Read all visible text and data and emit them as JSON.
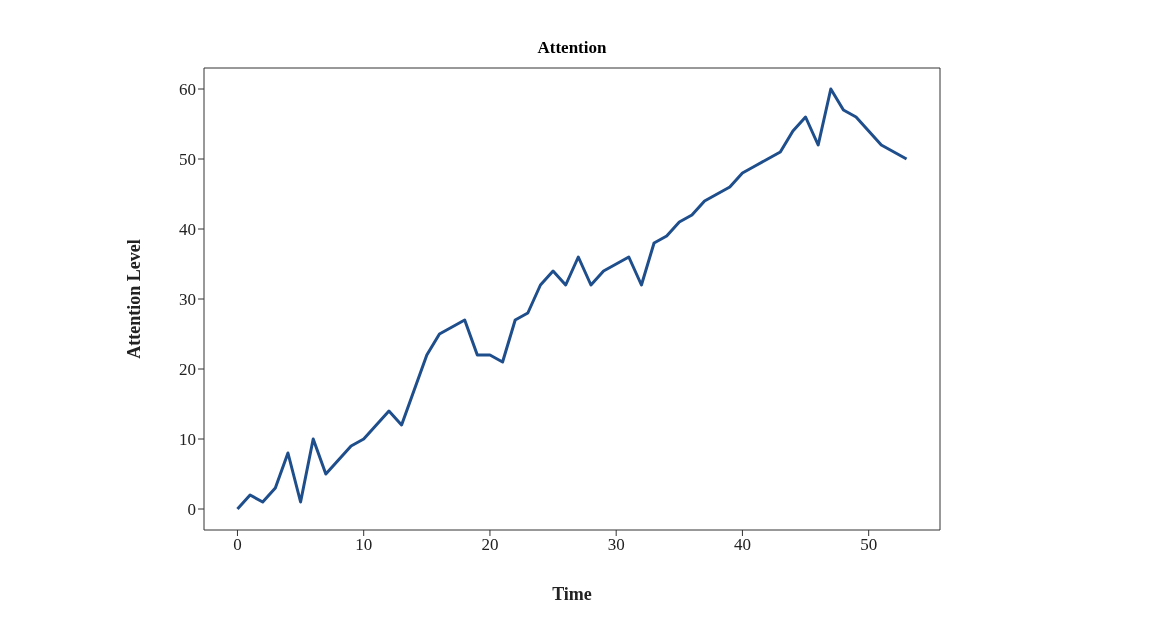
{
  "chart_data": {
    "type": "line",
    "title": "Attention",
    "xlabel": "Time",
    "ylabel": "Attention Level",
    "x": [
      0,
      1,
      2,
      3,
      4,
      5,
      6,
      7,
      8,
      9,
      10,
      11,
      12,
      13,
      14,
      15,
      16,
      17,
      18,
      19,
      20,
      21,
      22,
      23,
      24,
      25,
      26,
      27,
      28,
      29,
      30,
      31,
      32,
      33,
      34,
      35,
      36,
      37,
      38,
      39,
      40,
      41,
      42,
      43,
      44,
      45,
      46,
      47,
      48,
      49,
      50,
      51,
      52,
      53
    ],
    "series": [
      {
        "color": "#1f4e8c",
        "values": [
          0,
          2,
          1,
          3,
          8,
          1,
          10,
          5,
          7,
          9,
          10,
          12,
          14,
          12,
          17,
          22,
          25,
          26,
          27,
          22,
          22,
          21,
          27,
          28,
          32,
          34,
          32,
          36,
          32,
          34,
          35,
          36,
          32,
          38,
          39,
          41,
          42,
          44,
          45,
          46,
          48,
          49,
          50,
          51,
          54,
          56,
          52,
          60,
          57,
          56,
          54,
          52,
          51,
          50
        ]
      }
    ],
    "xlim": [
      -2.65,
      55.65
    ],
    "xticks": [
      0,
      10,
      20,
      30,
      40,
      50
    ],
    "ylim": [
      -3,
      63
    ],
    "yticks": [
      0,
      10,
      20,
      30,
      40,
      50,
      60
    ],
    "grid": false,
    "legend": false,
    "marker": "none",
    "line_style": "solid"
  }
}
